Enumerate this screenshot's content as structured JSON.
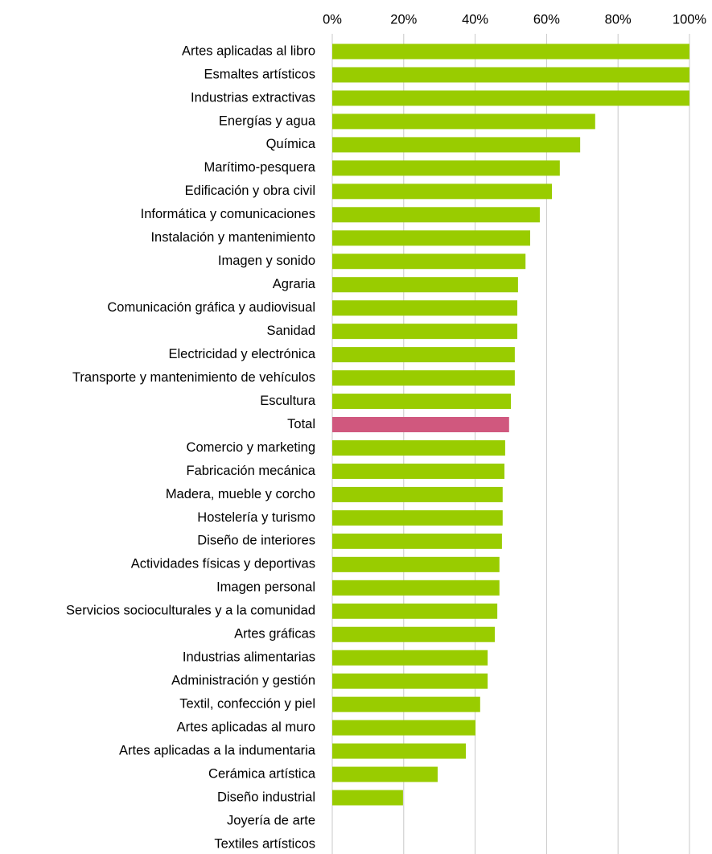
{
  "chart_data": {
    "type": "barh",
    "categories": [
      "Artes aplicadas al libro",
      "Esmaltes artísticos",
      "Industrias extractivas",
      "Energías y agua",
      "Química",
      "Marítimo-pesquera",
      "Edificación y obra civil",
      "Informática y comunicaciones",
      "Instalación y mantenimiento",
      "Imagen y sonido",
      "Agraria",
      "Comunicación gráfica y audiovisual",
      "Sanidad",
      "Electricidad y electrónica",
      "Transporte y mantenimiento de vehículos",
      "Escultura",
      "Total",
      "Comercio y marketing",
      "Fabricación mecánica",
      "Madera, mueble y corcho",
      "Hostelería y turismo",
      "Diseño de interiores",
      "Actividades físicas y deportivas",
      "Imagen personal",
      "Servicios socioculturales y a la comunidad",
      "Artes gráficas",
      "Industrias alimentarias",
      "Administración y gestión",
      "Textil, confección y piel",
      "Artes aplicadas al muro",
      "Artes aplicadas a la indumentaria",
      "Cerámica artística",
      "Diseño industrial",
      "Joyería de arte",
      "Textiles artísticos"
    ],
    "values": [
      100,
      100,
      100,
      73.6,
      69.4,
      63.7,
      61.5,
      58.1,
      55.4,
      54.1,
      52.0,
      51.8,
      51.8,
      51.1,
      51.1,
      50.0,
      49.5,
      48.4,
      48.2,
      47.7,
      47.7,
      47.5,
      46.8,
      46.8,
      46.2,
      45.5,
      43.5,
      43.5,
      41.4,
      40.1,
      37.4,
      29.5,
      19.8,
      0,
      0
    ],
    "color": "#99cc00",
    "highlight": {
      "category": "Total",
      "color": "#d0587e"
    },
    "xlim": [
      0,
      100
    ],
    "xticks": [
      {
        "value": 0,
        "label": "0%"
      },
      {
        "value": 20,
        "label": "20%"
      },
      {
        "value": 40,
        "label": "40%"
      },
      {
        "value": 60,
        "label": "60%"
      },
      {
        "value": 80,
        "label": "80%"
      },
      {
        "value": 100,
        "label": "100%"
      }
    ],
    "grid": true
  }
}
